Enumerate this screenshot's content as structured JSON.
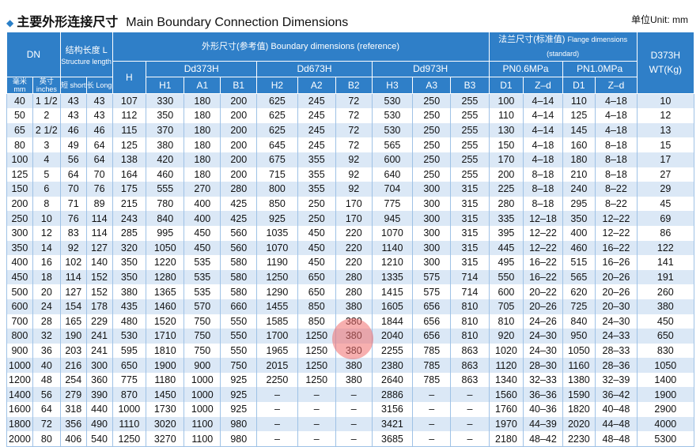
{
  "header": {
    "title_cn": "主要外形连接尺寸",
    "title_en": "Main Boundary Connection Dimensions",
    "unit": "单位Unit: mm"
  },
  "colors": {
    "header_bg": "#2f7fc8",
    "row_alt": "#dbe8f6",
    "accent": "#2a7fc7"
  },
  "table": {
    "h_dn": "DN",
    "h_len": "结构长度 L",
    "h_len_en": "Structure length",
    "h_boundary": "外形尺寸(参考值)",
    "h_boundary_en": "Boundary dimensions (reference)",
    "h_flange": "法兰尺寸(标准值)",
    "h_flange_en": "Flange dimensions (standard)",
    "h_wt1": "D373H",
    "h_wt2": "WT(Kg)",
    "h_H": "H",
    "h_d373": "Dd373H",
    "h_d673": "Dd673H",
    "h_d973": "Dd973H",
    "h_pn06": "PN0.6MPa",
    "h_pn10": "PN1.0MPa",
    "h_mm_cn": "毫米",
    "h_mm": "mm",
    "h_in_cn": "英寸",
    "h_in": "inches",
    "h_short": "短 short",
    "h_long": "长 Long",
    "h_H1": "H1",
    "h_A1": "A1",
    "h_B1": "B1",
    "h_H2": "H2",
    "h_A2": "A2",
    "h_B2": "B2",
    "h_H3": "H3",
    "h_A3": "A3",
    "h_B3": "B3",
    "h_D1a": "D1",
    "h_Zda": "Z–d",
    "h_D1b": "D1",
    "h_Zdb": "Z–d",
    "rows": [
      [
        "40",
        "1 1/2",
        "43",
        "43",
        "107",
        "330",
        "180",
        "200",
        "625",
        "245",
        "72",
        "530",
        "250",
        "255",
        "100",
        "4–14",
        "110",
        "4–18",
        "10"
      ],
      [
        "50",
        "2",
        "43",
        "43",
        "112",
        "350",
        "180",
        "200",
        "625",
        "245",
        "72",
        "530",
        "250",
        "255",
        "110",
        "4–14",
        "125",
        "4–18",
        "12"
      ],
      [
        "65",
        "2 1/2",
        "46",
        "46",
        "115",
        "370",
        "180",
        "200",
        "625",
        "245",
        "72",
        "530",
        "250",
        "255",
        "130",
        "4–14",
        "145",
        "4–18",
        "13"
      ],
      [
        "80",
        "3",
        "49",
        "64",
        "125",
        "380",
        "180",
        "200",
        "645",
        "245",
        "72",
        "565",
        "250",
        "255",
        "150",
        "4–18",
        "160",
        "8–18",
        "15"
      ],
      [
        "100",
        "4",
        "56",
        "64",
        "138",
        "420",
        "180",
        "200",
        "675",
        "355",
        "92",
        "600",
        "250",
        "255",
        "170",
        "4–18",
        "180",
        "8–18",
        "17"
      ],
      [
        "125",
        "5",
        "64",
        "70",
        "164",
        "460",
        "180",
        "200",
        "715",
        "355",
        "92",
        "640",
        "250",
        "255",
        "200",
        "8–18",
        "210",
        "8–18",
        "27"
      ],
      [
        "150",
        "6",
        "70",
        "76",
        "175",
        "555",
        "270",
        "280",
        "800",
        "355",
        "92",
        "704",
        "300",
        "315",
        "225",
        "8–18",
        "240",
        "8–22",
        "29"
      ],
      [
        "200",
        "8",
        "71",
        "89",
        "215",
        "780",
        "400",
        "425",
        "850",
        "250",
        "170",
        "775",
        "300",
        "315",
        "280",
        "8–18",
        "295",
        "8–22",
        "45"
      ],
      [
        "250",
        "10",
        "76",
        "114",
        "243",
        "840",
        "400",
        "425",
        "925",
        "250",
        "170",
        "945",
        "300",
        "315",
        "335",
        "12–18",
        "350",
        "12–22",
        "69"
      ],
      [
        "300",
        "12",
        "83",
        "114",
        "285",
        "995",
        "450",
        "560",
        "1035",
        "450",
        "220",
        "1070",
        "300",
        "315",
        "395",
        "12–22",
        "400",
        "12–22",
        "86"
      ],
      [
        "350",
        "14",
        "92",
        "127",
        "320",
        "1050",
        "450",
        "560",
        "1070",
        "450",
        "220",
        "1140",
        "300",
        "315",
        "445",
        "12–22",
        "460",
        "16–22",
        "122"
      ],
      [
        "400",
        "16",
        "102",
        "140",
        "350",
        "1220",
        "535",
        "580",
        "1190",
        "450",
        "220",
        "1210",
        "300",
        "315",
        "495",
        "16–22",
        "515",
        "16–26",
        "141"
      ],
      [
        "450",
        "18",
        "114",
        "152",
        "350",
        "1280",
        "535",
        "580",
        "1250",
        "650",
        "280",
        "1335",
        "575",
        "714",
        "550",
        "16–22",
        "565",
        "20–26",
        "191"
      ],
      [
        "500",
        "20",
        "127",
        "152",
        "380",
        "1365",
        "535",
        "580",
        "1290",
        "650",
        "280",
        "1415",
        "575",
        "714",
        "600",
        "20–22",
        "620",
        "20–26",
        "260"
      ],
      [
        "600",
        "24",
        "154",
        "178",
        "435",
        "1460",
        "570",
        "660",
        "1455",
        "850",
        "380",
        "1605",
        "656",
        "810",
        "705",
        "20–26",
        "725",
        "20–30",
        "380"
      ],
      [
        "700",
        "28",
        "165",
        "229",
        "480",
        "1520",
        "750",
        "550",
        "1585",
        "850",
        "380",
        "1844",
        "656",
        "810",
        "810",
        "24–26",
        "840",
        "24–30",
        "450"
      ],
      [
        "800",
        "32",
        "190",
        "241",
        "530",
        "1710",
        "750",
        "550",
        "1700",
        "1250",
        "380",
        "2040",
        "656",
        "810",
        "920",
        "24–30",
        "950",
        "24–33",
        "650"
      ],
      [
        "900",
        "36",
        "203",
        "241",
        "595",
        "1810",
        "750",
        "550",
        "1965",
        "1250",
        "380",
        "2255",
        "785",
        "863",
        "1020",
        "24–30",
        "1050",
        "28–33",
        "830"
      ],
      [
        "1000",
        "40",
        "216",
        "300",
        "650",
        "1900",
        "900",
        "750",
        "2015",
        "1250",
        "380",
        "2380",
        "785",
        "863",
        "1120",
        "28–30",
        "1160",
        "28–36",
        "1050"
      ],
      [
        "1200",
        "48",
        "254",
        "360",
        "775",
        "1180",
        "1000",
        "925",
        "2250",
        "1250",
        "380",
        "2640",
        "785",
        "863",
        "1340",
        "32–33",
        "1380",
        "32–39",
        "1400"
      ],
      [
        "1400",
        "56",
        "279",
        "390",
        "870",
        "1450",
        "1000",
        "925",
        "–",
        "–",
        "–",
        "2886",
        "–",
        "–",
        "1560",
        "36–36",
        "1590",
        "36–42",
        "1900"
      ],
      [
        "1600",
        "64",
        "318",
        "440",
        "1000",
        "1730",
        "1000",
        "925",
        "–",
        "–",
        "–",
        "3156",
        "–",
        "–",
        "1760",
        "40–36",
        "1820",
        "40–48",
        "2900"
      ],
      [
        "1800",
        "72",
        "356",
        "490",
        "1110",
        "3020",
        "1100",
        "980",
        "–",
        "–",
        "–",
        "3421",
        "–",
        "–",
        "1970",
        "44–39",
        "2020",
        "44–48",
        "4000"
      ],
      [
        "2000",
        "80",
        "406",
        "540",
        "1250",
        "3270",
        "1100",
        "980",
        "–",
        "–",
        "–",
        "3685",
        "–",
        "–",
        "2180",
        "48–42",
        "2230",
        "48–48",
        "5300"
      ]
    ]
  }
}
